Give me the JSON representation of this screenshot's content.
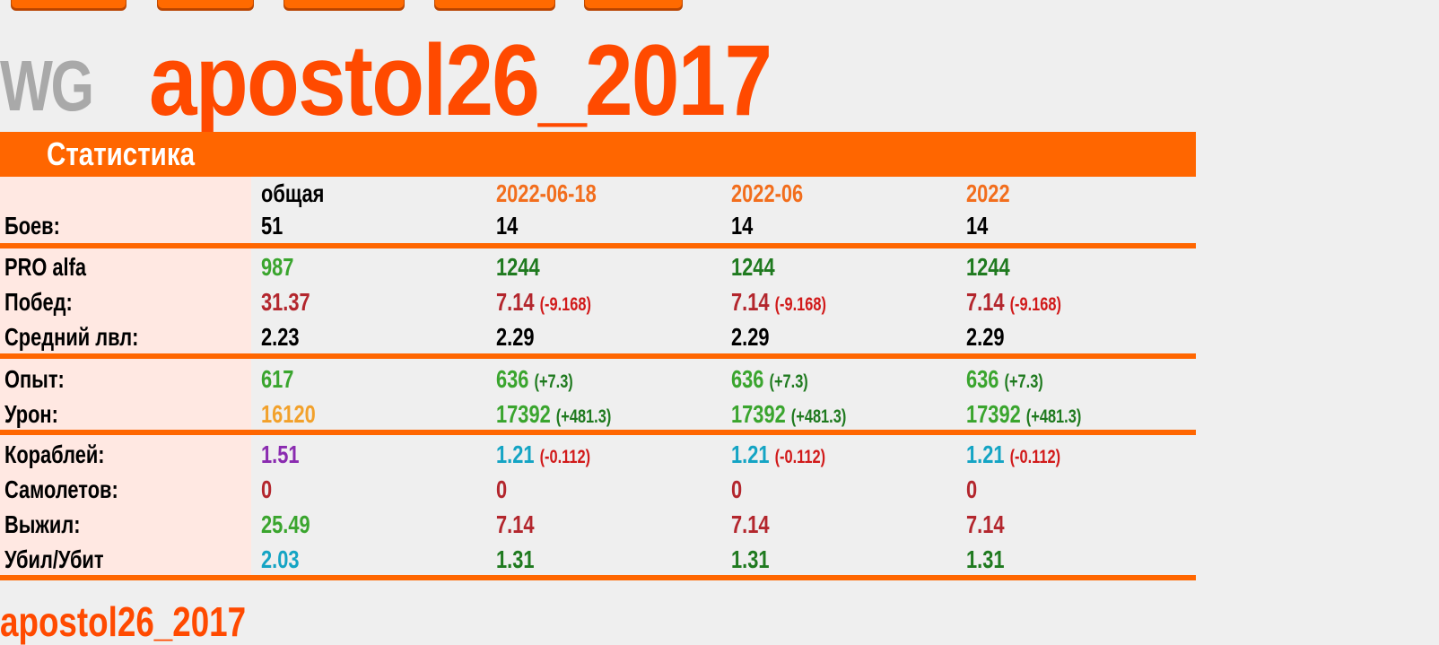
{
  "logo": "WG",
  "nickname": "apostol26_2017",
  "section_title": "Статистика",
  "footer_text": "apostol26_2017",
  "columns": [
    "общая",
    "2022-06-18",
    "2022-06",
    "2022"
  ],
  "rows": [
    {
      "label": "Боев:",
      "values": [
        {
          "v": "51"
        },
        {
          "v": "14"
        },
        {
          "v": "14"
        },
        {
          "v": "14"
        }
      ]
    },
    {
      "label": "PRO alfa",
      "values": [
        {
          "v": "987"
        },
        {
          "v": "1244"
        },
        {
          "v": "1244"
        },
        {
          "v": "1244"
        }
      ]
    },
    {
      "label": "Побед:",
      "values": [
        {
          "v": "31.37"
        },
        {
          "v": "7.14",
          "d": "(-9.168)"
        },
        {
          "v": "7.14",
          "d": "(-9.168)"
        },
        {
          "v": "7.14",
          "d": "(-9.168)"
        }
      ]
    },
    {
      "label": "Средний лвл:",
      "values": [
        {
          "v": "2.23"
        },
        {
          "v": "2.29"
        },
        {
          "v": "2.29"
        },
        {
          "v": "2.29"
        }
      ]
    },
    {
      "label": "Опыт:",
      "values": [
        {
          "v": "617"
        },
        {
          "v": "636",
          "d": "(+7.3)"
        },
        {
          "v": "636",
          "d": "(+7.3)"
        },
        {
          "v": "636",
          "d": "(+7.3)"
        }
      ]
    },
    {
      "label": "Урон:",
      "values": [
        {
          "v": "16120"
        },
        {
          "v": "17392",
          "d": "(+481.3)"
        },
        {
          "v": "17392",
          "d": "(+481.3)"
        },
        {
          "v": "17392",
          "d": "(+481.3)"
        }
      ]
    },
    {
      "label": "Кораблей:",
      "values": [
        {
          "v": "1.51"
        },
        {
          "v": "1.21",
          "d": "(-0.112)"
        },
        {
          "v": "1.21",
          "d": "(-0.112)"
        },
        {
          "v": "1.21",
          "d": "(-0.112)"
        }
      ]
    },
    {
      "label": "Самолетов:",
      "values": [
        {
          "v": "0"
        },
        {
          "v": "0"
        },
        {
          "v": "0"
        },
        {
          "v": "0"
        }
      ]
    },
    {
      "label": "Выжил:",
      "values": [
        {
          "v": "25.49"
        },
        {
          "v": "7.14"
        },
        {
          "v": "7.14"
        },
        {
          "v": "7.14"
        }
      ]
    },
    {
      "label": "Убил/Убит",
      "values": [
        {
          "v": "2.03"
        },
        {
          "v": "1.31"
        },
        {
          "v": "1.31"
        },
        {
          "v": "1.31"
        }
      ]
    }
  ],
  "colors": {
    "accent": "#ff6600",
    "title": "#ff4a00",
    "label_bg": "#ffe8e2",
    "page_bg": "#efefef"
  }
}
